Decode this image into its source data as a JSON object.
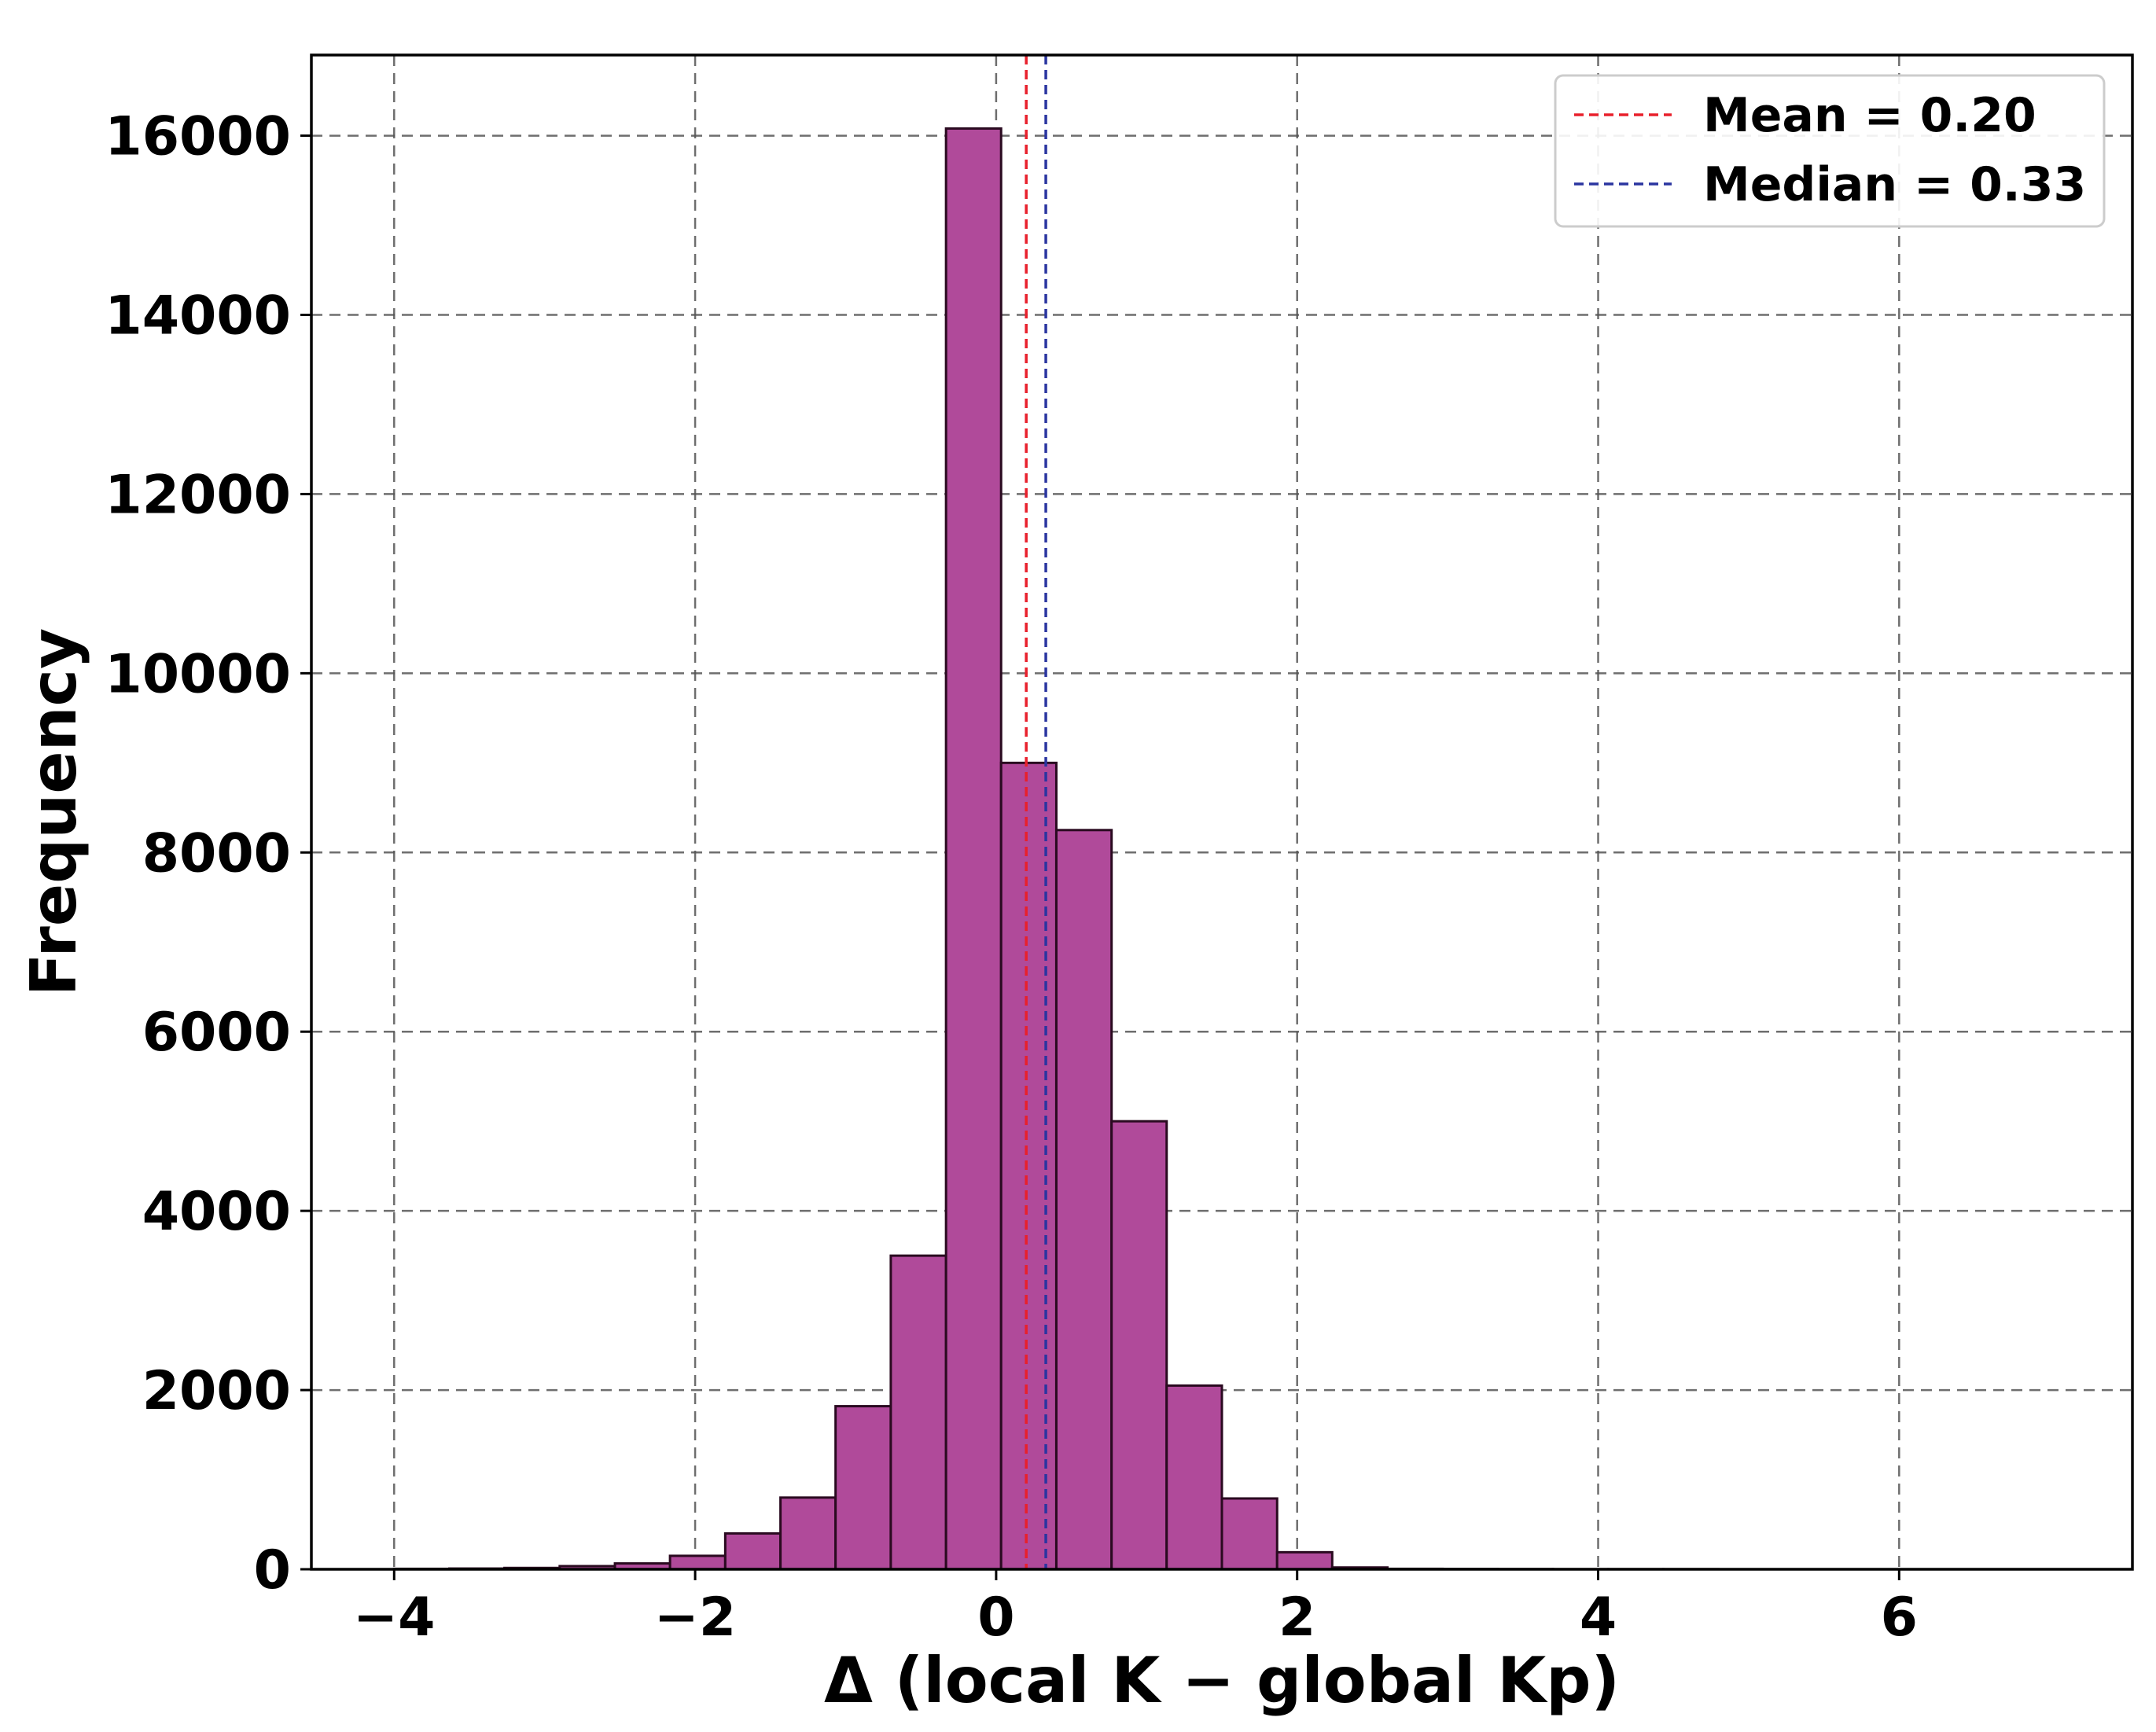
{
  "chart_data": {
    "type": "bar",
    "title": "",
    "xlabel": "Δ (local K − global Kp)",
    "ylabel": "Frequency",
    "xlim": [
      -4.55,
      7.55
    ],
    "ylim": [
      0,
      16900
    ],
    "xticks": [
      -4,
      -2,
      0,
      2,
      4,
      6
    ],
    "xtick_labels": [
      "−4",
      "−2",
      "0",
      "2",
      "4",
      "6"
    ],
    "yticks": [
      0,
      2000,
      4000,
      6000,
      8000,
      10000,
      12000,
      14000,
      16000
    ],
    "ytick_labels": [
      "0",
      "2000",
      "4000",
      "6000",
      "8000",
      "10000",
      "12000",
      "14000",
      "16000"
    ],
    "grid": true,
    "bar_color": "#b04a9a",
    "bin_width": 0.3667,
    "bin_edges": [
      -4.0,
      -3.633,
      -3.267,
      -2.9,
      -2.533,
      -2.167,
      -1.8,
      -1.433,
      -1.067,
      -0.7,
      -0.333,
      0.033,
      0.4,
      0.767,
      1.133,
      1.5,
      1.867,
      2.233,
      2.6,
      2.967,
      3.333,
      3.7,
      4.067,
      4.433,
      4.8,
      5.167,
      5.533,
      5.9,
      6.267,
      6.633,
      7.0
    ],
    "values": [
      5,
      8,
      15,
      35,
      65,
      150,
      400,
      800,
      1820,
      3500,
      16080,
      9000,
      8250,
      5000,
      2050,
      790,
      190,
      20,
      5,
      3,
      2,
      1,
      1,
      1,
      0,
      0,
      0,
      0,
      0,
      0
    ],
    "reference_lines": [
      {
        "label": "Mean = 0.20",
        "x": 0.2,
        "color": "#e8202c",
        "style": "dashed"
      },
      {
        "label": "Median = 0.33",
        "x": 0.33,
        "color": "#2a35a0",
        "style": "dashed"
      }
    ],
    "legend_position": "top-right"
  }
}
